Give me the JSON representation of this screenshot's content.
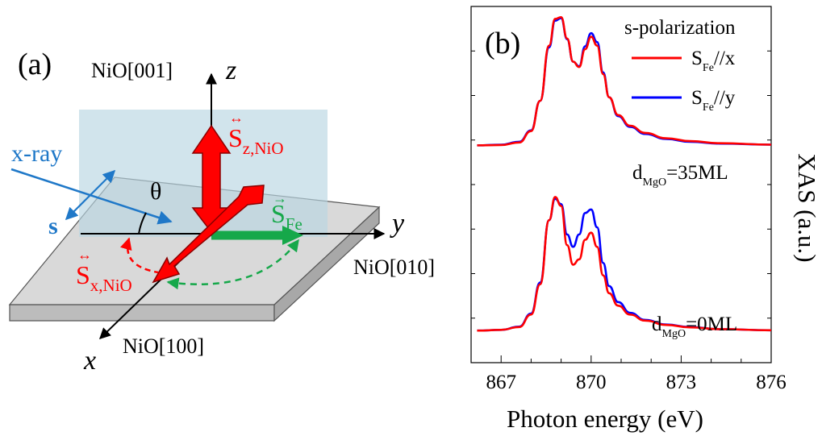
{
  "panel_a": {
    "label": "(a)",
    "axes": {
      "z": {
        "label": "z",
        "direction": "NiO[001]"
      },
      "y": {
        "label": "y",
        "direction": "NiO[010]"
      },
      "x": {
        "label": "x",
        "direction": "NiO[100]"
      }
    },
    "xray_label": "x-ray",
    "s_label": "s",
    "theta": "θ",
    "spins": {
      "z_nio": {
        "base": "S",
        "sub": "z,NiO",
        "arrow": "↔"
      },
      "x_nio": {
        "base": "S",
        "sub": "x,NiO",
        "arrow": "↔"
      },
      "fe": {
        "base": "S",
        "sub": "Fe",
        "arrow": "→"
      }
    },
    "colors": {
      "xray_blue": "#1f78c8",
      "nio_red": "#ff0000",
      "fe_green": "#16a84a",
      "plane": "#c9e0ea",
      "slab_top": "#d9d9d9",
      "slab_side": "#bcbcbc"
    }
  },
  "panel_b": {
    "label": "(b)",
    "legend": {
      "title": "s-polarization",
      "entries": [
        {
          "base": "S",
          "sub": "Fe",
          "suffix": "//x",
          "color": "#ff0000"
        },
        {
          "base": "S",
          "sub": "Fe",
          "suffix": "//y",
          "color": "#0000ff"
        }
      ]
    },
    "annotations": [
      {
        "base": "d",
        "sub": "MgO",
        "suffix": "=35ML"
      },
      {
        "base": "d",
        "sub": "MgO",
        "suffix": "=0ML"
      }
    ],
    "ylabel": "XAS (a.u.)",
    "xlabel": "Photon energy (eV)"
  },
  "chart_data": {
    "type": "line",
    "xlabel": "Photon energy (eV)",
    "ylabel": "XAS (a.u.)",
    "xlim": [
      866,
      876
    ],
    "ylim": [
      0,
      1
    ],
    "xticks": [
      867,
      870,
      873,
      876
    ],
    "grid": false,
    "legend_title": "s-polarization",
    "groups": [
      {
        "annotation": "dMgO=35ML",
        "series": [
          {
            "name": "SFe//x",
            "color": "#ff0000",
            "x": [
              866.2,
              867.0,
              867.6,
              868.0,
              868.3,
              868.6,
              868.8,
              869.0,
              869.2,
              869.4,
              869.6,
              869.8,
              870.0,
              870.2,
              870.4,
              870.6,
              870.9,
              871.3,
              871.8,
              872.5,
              873.3,
              874.3,
              876.0
            ],
            "y": [
              0.61,
              0.611,
              0.618,
              0.65,
              0.735,
              0.89,
              0.965,
              0.97,
              0.91,
              0.845,
              0.83,
              0.88,
              0.915,
              0.89,
              0.81,
              0.745,
              0.695,
              0.665,
              0.645,
              0.63,
              0.622,
              0.616,
              0.612
            ]
          },
          {
            "name": "SFe//y",
            "color": "#0000ff",
            "x": [
              866.2,
              867.0,
              867.6,
              868.0,
              868.3,
              868.6,
              868.8,
              869.0,
              869.2,
              869.4,
              869.6,
              869.8,
              870.0,
              870.2,
              870.4,
              870.6,
              870.9,
              871.3,
              871.8,
              872.5,
              873.3,
              874.3,
              876.0
            ],
            "y": [
              0.61,
              0.612,
              0.62,
              0.652,
              0.735,
              0.885,
              0.96,
              0.967,
              0.908,
              0.845,
              0.832,
              0.888,
              0.925,
              0.9,
              0.815,
              0.745,
              0.692,
              0.662,
              0.642,
              0.628,
              0.62,
              0.615,
              0.612
            ]
          }
        ]
      },
      {
        "annotation": "dMgO=0ML",
        "series": [
          {
            "name": "SFe//x",
            "color": "#ff0000",
            "x": [
              866.2,
              867.0,
              867.6,
              868.0,
              868.3,
              868.6,
              868.8,
              869.0,
              869.2,
              869.4,
              869.6,
              869.8,
              870.0,
              870.2,
              870.4,
              870.6,
              870.9,
              871.3,
              871.8,
              872.5,
              873.3,
              874.3,
              876.0
            ],
            "y": [
              0.09,
              0.092,
              0.1,
              0.135,
              0.22,
              0.4,
              0.465,
              0.44,
              0.33,
              0.275,
              0.29,
              0.345,
              0.365,
              0.325,
              0.245,
              0.195,
              0.16,
              0.135,
              0.118,
              0.106,
              0.099,
              0.094,
              0.091
            ]
          },
          {
            "name": "SFe//y",
            "color": "#0000ff",
            "x": [
              866.2,
              867.0,
              867.6,
              868.0,
              868.3,
              868.6,
              868.8,
              869.0,
              869.2,
              869.4,
              869.6,
              869.8,
              870.0,
              870.2,
              870.4,
              870.6,
              870.9,
              871.3,
              871.8,
              872.5,
              873.3,
              874.3,
              876.0
            ],
            "y": [
              0.09,
              0.092,
              0.101,
              0.138,
              0.225,
              0.4,
              0.46,
              0.445,
              0.36,
              0.325,
              0.36,
              0.42,
              0.43,
              0.38,
              0.28,
              0.215,
              0.17,
              0.14,
              0.12,
              0.107,
              0.1,
              0.094,
              0.091
            ]
          }
        ]
      }
    ]
  }
}
